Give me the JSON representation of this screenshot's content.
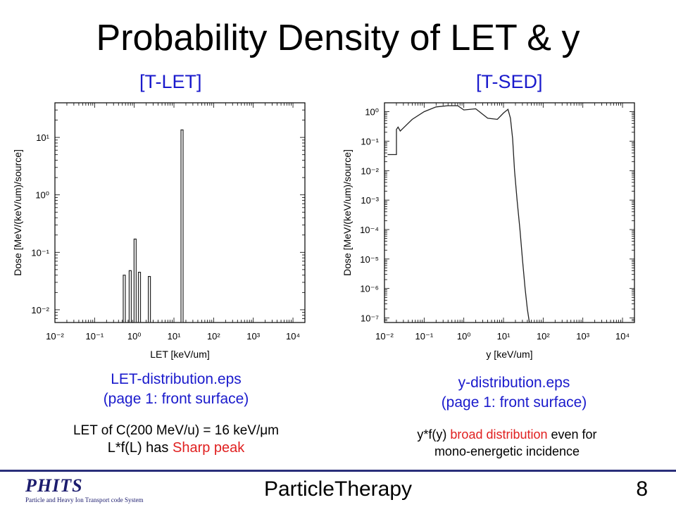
{
  "slide": {
    "title": "Probability Density of LET & y",
    "left_subtitle": "[T-LET]",
    "right_subtitle": "[T-SED]",
    "left_caption_line1": "LET-distribution.eps",
    "left_caption_line2": "(page 1: front surface)",
    "right_caption_line1": "y-distribution.eps",
    "right_caption_line2": "(page 1: front surface)",
    "left_note_line1": "LET of C(200 MeV/u) = 16 keV/μm",
    "left_note_line2_a": "L*f(L) has ",
    "left_note_line2_b": "Sharp peak",
    "right_note_line1_a": "y*f(y)  ",
    "right_note_line1_b": "broad distribution",
    "right_note_line1_c": " even for",
    "right_note_line2": "mono-energetic incidence",
    "footer_center": "ParticleTherapy",
    "page_number": "8",
    "logo_text": "PHITS",
    "logo_subtitle": "Particle and Heavy Ion Transport code System",
    "colors": {
      "blue_text": "#1a1acc",
      "red_text": "#e02020",
      "footer_line": "#2a2f7a"
    }
  },
  "chart_data": [
    {
      "type": "bar",
      "xlabel": "LET [keV/um]",
      "ylabel": "Dose [MeV/(keV/um)/source]",
      "xscale": "log",
      "yscale": "log",
      "xlim": [
        0.01,
        20000
      ],
      "ylim": [
        0.006,
        40
      ],
      "xticks": [
        "10⁻²",
        "10⁻¹",
        "10⁰",
        "10¹",
        "10²",
        "10³",
        "10⁴"
      ],
      "yticks": [
        "10⁻²",
        "10⁻¹",
        "10⁰",
        "10¹"
      ],
      "x": [
        0.56,
        0.79,
        1.05,
        1.35,
        2.4,
        16.0
      ],
      "values": [
        0.04,
        0.048,
        0.17,
        0.045,
        0.038,
        13.5
      ]
    },
    {
      "type": "line",
      "xlabel": "y [keV/um]",
      "ylabel": "Dose [MeV/(keV/um)/source]",
      "xscale": "log",
      "yscale": "log",
      "xlim": [
        0.01,
        20000
      ],
      "ylim": [
        7e-08,
        2
      ],
      "xticks": [
        "10⁻²",
        "10⁻¹",
        "10⁰",
        "10¹",
        "10²",
        "10³",
        "10⁴"
      ],
      "yticks": [
        "10⁰",
        "10⁻¹",
        "10⁻²",
        "10⁻³",
        "10⁻⁴",
        "10⁻⁵",
        "10⁻⁶",
        "10⁻⁷"
      ],
      "x": [
        0.012,
        0.02,
        0.02,
        0.022,
        0.025,
        0.03,
        0.05,
        0.1,
        0.2,
        0.4,
        0.7,
        1.0,
        2.0,
        4.0,
        7.0,
        10.0,
        13.0,
        15.0,
        17.0,
        19.0,
        22.0,
        26.0,
        30.0,
        35.0,
        40.0,
        45.0
      ],
      "values": [
        0.035,
        0.035,
        0.25,
        0.3,
        0.22,
        0.28,
        0.55,
        1.0,
        1.45,
        1.6,
        1.6,
        1.15,
        1.25,
        0.6,
        0.55,
        0.9,
        1.2,
        0.6,
        0.12,
        0.01,
        0.001,
        0.0001,
        1e-05,
        1e-06,
        2e-07,
        7e-08
      ]
    }
  ]
}
